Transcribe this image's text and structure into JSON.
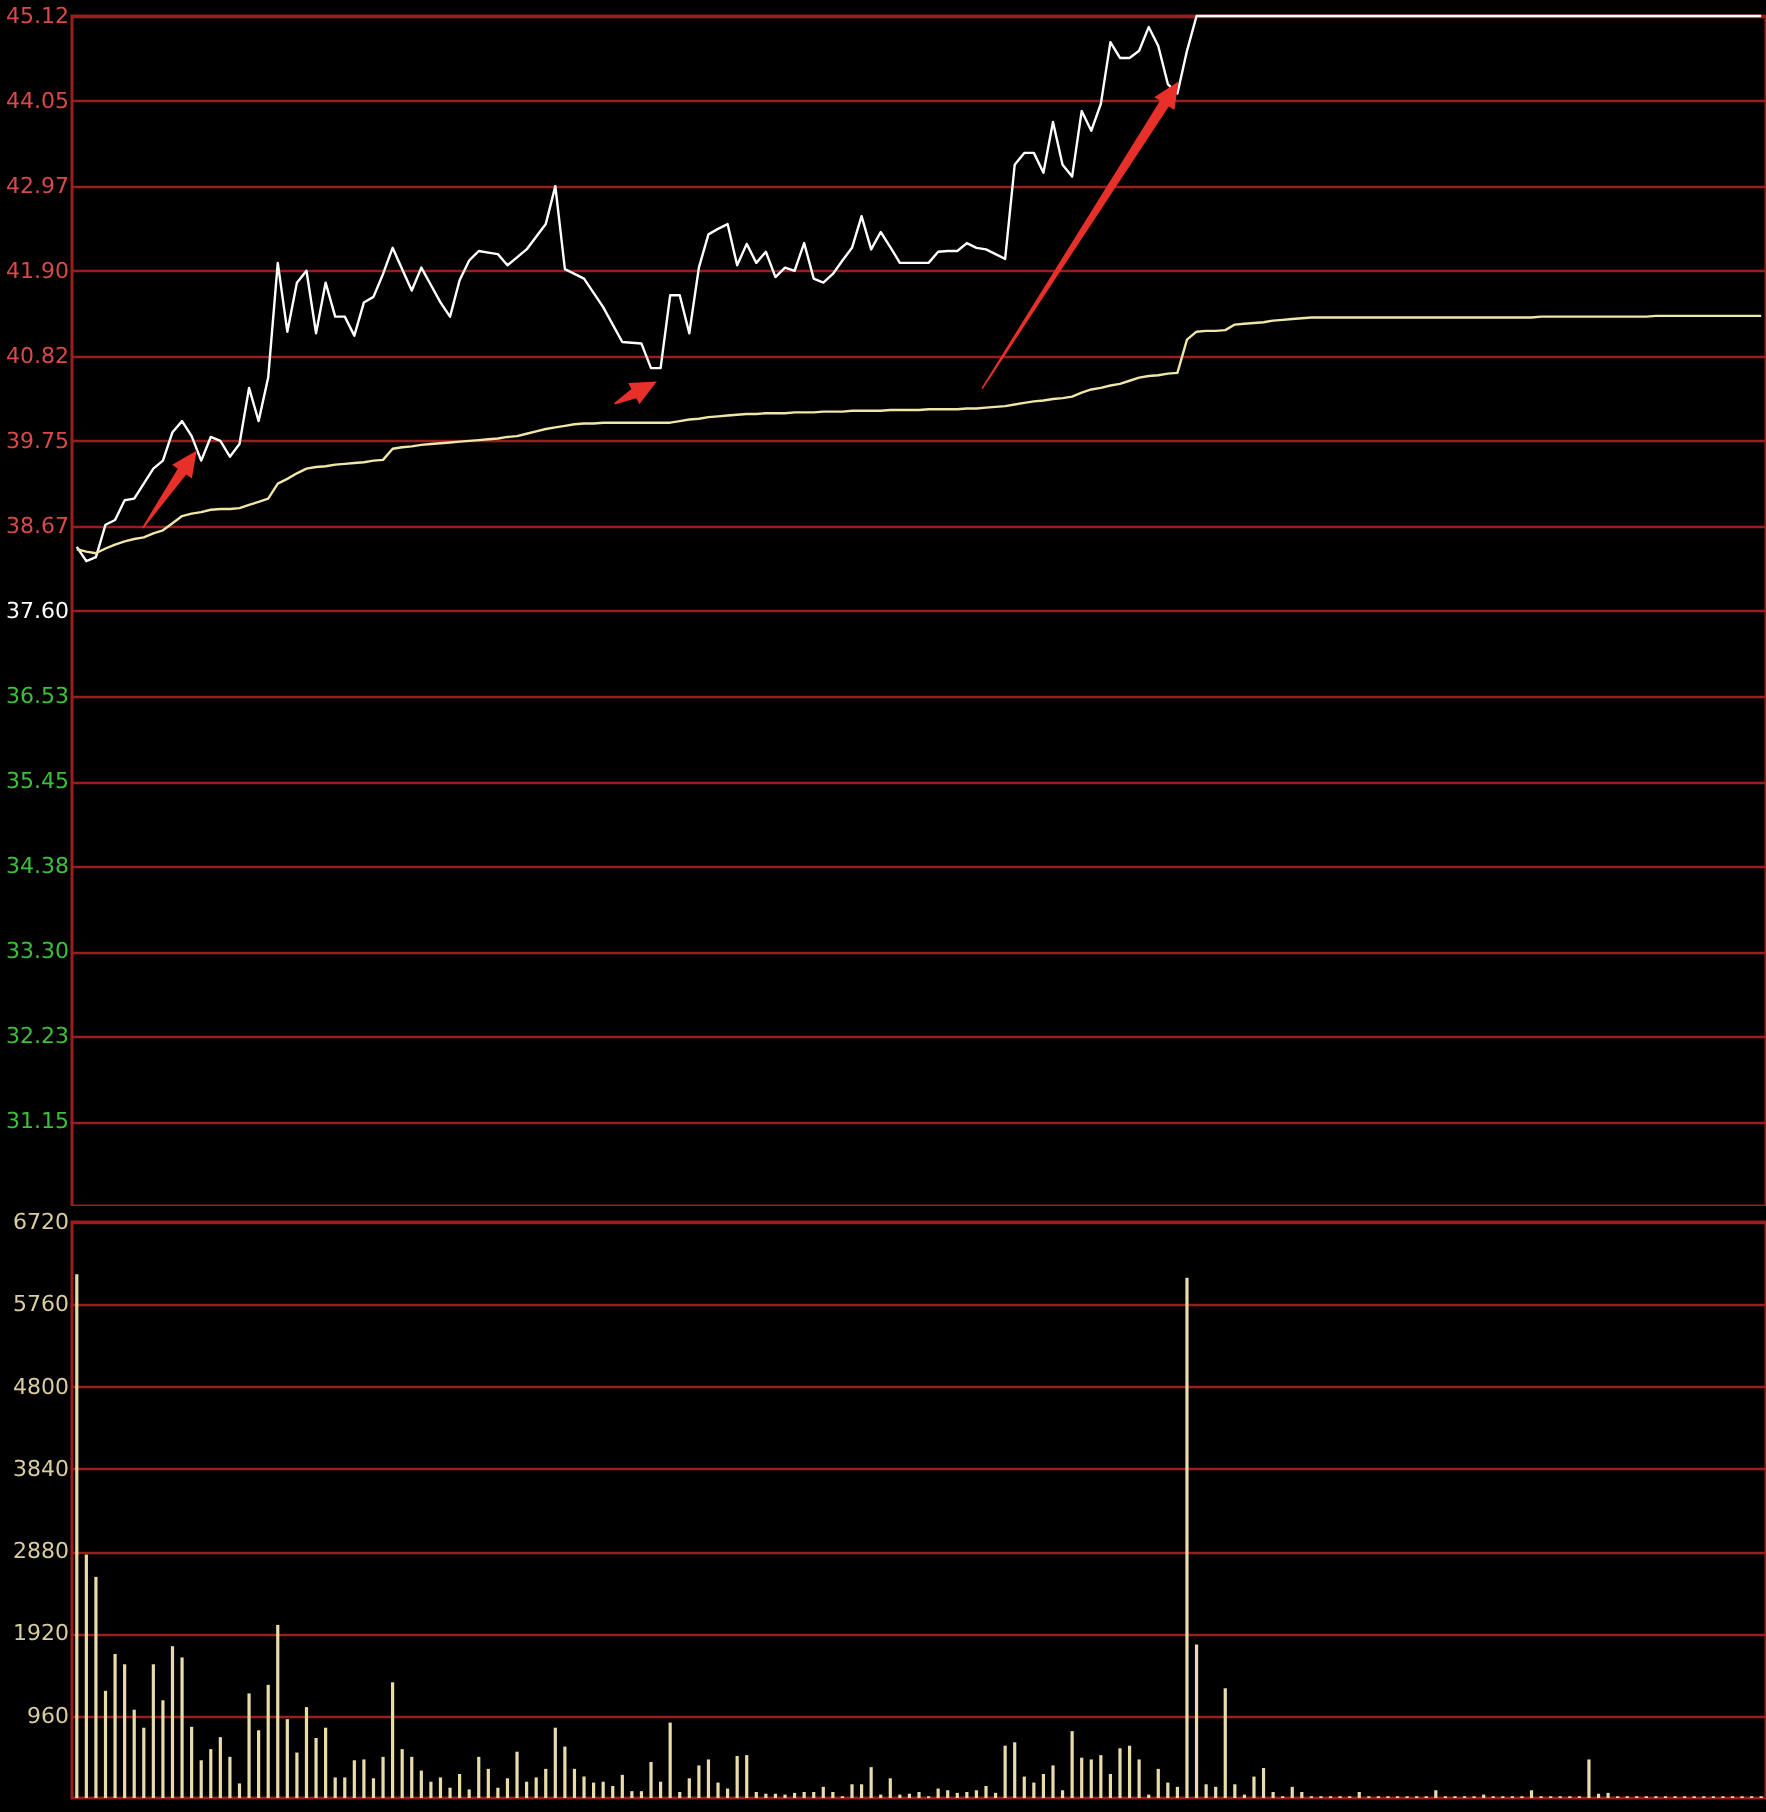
{
  "chart_data": [
    {
      "type": "line",
      "categories": [
        null,
        null,
        null,
        null,
        null,
        null,
        null,
        null,
        null,
        null,
        null,
        null,
        null,
        null,
        null,
        null,
        null,
        null,
        null,
        null,
        null,
        null,
        null,
        null,
        null,
        null,
        null,
        null,
        null,
        null,
        null,
        null,
        null,
        null,
        null,
        null,
        null,
        null,
        null,
        null,
        null,
        null,
        null,
        null,
        null,
        null,
        null,
        null,
        null,
        null,
        null,
        null,
        null,
        null,
        null,
        null,
        null,
        null,
        null,
        null,
        null,
        null,
        null,
        null,
        null,
        null,
        null,
        null,
        null,
        null,
        null,
        null,
        null,
        null,
        null,
        null,
        null,
        null,
        null,
        null,
        null,
        null,
        null,
        null,
        null,
        null,
        null,
        null,
        null,
        null,
        null,
        null,
        null,
        null,
        null,
        null,
        null,
        null,
        null,
        null,
        null,
        null,
        null,
        null,
        null,
        null,
        null,
        null,
        null,
        null,
        null,
        null,
        null,
        null,
        null,
        null,
        null,
        null,
        null,
        null,
        null,
        null,
        null,
        null,
        null,
        null,
        null,
        null,
        null,
        null,
        null,
        null,
        null,
        null,
        null,
        null,
        null,
        null,
        null,
        null,
        null,
        null,
        null,
        null,
        null,
        null,
        null,
        null,
        null,
        null,
        null,
        null,
        null,
        null,
        null,
        null,
        null,
        null,
        null,
        null,
        null,
        null,
        null,
        null,
        null,
        null,
        null,
        null,
        null,
        null,
        null,
        null,
        null,
        null,
        null,
        null,
        null
      ],
      "ylim": [
        30.08,
        45.12
      ],
      "yticks": [
        31.15,
        32.23,
        {
          "value": 33.3,
          "label": "33.30"
        },
        34.38,
        35.45,
        36.53,
        {
          "value": 37.6,
          "label": "37.60"
        },
        38.67,
        39.75,
        40.82,
        {
          "value": 41.9,
          "label": "41.90"
        },
        42.97,
        44.05,
        45.12
      ],
      "grid": "y",
      "tick_labels": "y",
      "series": [
        {
          "color": "#ffffff",
          "values": [
            38.41,
            38.23,
            38.28,
            38.69,
            38.75,
            39.0,
            39.02,
            39.21,
            39.4,
            39.5,
            39.86,
            40.0,
            39.81,
            39.5,
            39.8,
            39.75,
            39.55,
            39.71,
            40.42,
            40.0,
            40.55,
            42.0,
            41.13,
            41.75,
            41.9,
            41.11,
            41.75,
            41.32,
            41.32,
            41.08,
            41.5,
            41.57,
            41.86,
            42.19,
            41.92,
            41.65,
            41.94,
            41.72,
            41.5,
            41.32,
            41.78,
            42.03,
            42.15,
            42.13,
            42.11,
            41.97,
            42.07,
            42.17,
            42.33,
            42.49,
            42.97,
            41.92,
            41.86,
            41.8,
            41.62,
            41.44,
            41.22,
            41.0,
            40.99,
            40.98,
            40.67,
            40.67,
            41.59,
            41.59,
            41.11,
            41.94,
            42.36,
            42.43,
            42.49,
            41.97,
            42.24,
            42.0,
            42.14,
            41.82,
            41.94,
            41.9,
            42.25,
            41.8,
            41.75,
            41.86,
            42.03,
            42.19,
            42.59,
            42.17,
            42.39,
            42.2,
            42.0,
            42.0,
            42.0,
            42.0,
            42.14,
            42.15,
            42.15,
            42.25,
            42.19,
            42.17,
            42.11,
            42.05,
            43.24,
            43.39,
            43.39,
            43.14,
            43.78,
            43.24,
            43.09,
            43.92,
            43.67,
            44.01,
            44.79,
            44.59,
            44.59,
            44.68,
            44.98,
            44.74,
            44.26,
            44.14,
            44.68,
            45.12,
            45.12,
            45.12,
            45.12,
            45.12,
            45.12,
            45.12,
            45.12,
            45.12,
            45.12,
            45.12,
            45.12,
            45.12,
            45.12,
            45.12,
            45.12,
            45.12,
            45.12,
            45.12,
            45.12,
            45.12,
            45.12,
            45.12,
            45.12,
            45.12,
            45.12,
            45.12,
            45.12,
            45.12,
            45.12,
            45.12,
            45.12,
            45.12,
            45.12,
            45.12,
            45.12,
            45.12,
            45.12,
            45.12,
            45.12,
            45.12,
            45.12,
            45.12,
            45.12,
            45.12,
            45.12,
            45.12,
            45.12,
            45.12,
            45.12,
            45.12,
            45.12,
            45.12,
            45.12,
            45.12,
            45.12,
            45.12,
            45.12,
            45.12,
            45.12
          ]
        },
        {
          "color": "#f0e6a8",
          "values": [
            38.38,
            38.35,
            38.33,
            38.39,
            38.44,
            38.48,
            38.51,
            38.53,
            38.58,
            38.62,
            38.71,
            38.8,
            38.83,
            38.85,
            38.88,
            38.89,
            38.89,
            38.9,
            38.94,
            38.98,
            39.02,
            39.21,
            39.27,
            39.34,
            39.4,
            39.42,
            39.43,
            39.45,
            39.46,
            39.47,
            39.48,
            39.5,
            39.51,
            39.65,
            39.67,
            39.68,
            39.7,
            39.71,
            39.72,
            39.73,
            39.74,
            39.75,
            39.76,
            39.77,
            39.78,
            39.8,
            39.81,
            39.84,
            39.87,
            39.9,
            39.92,
            39.94,
            39.96,
            39.97,
            39.97,
            39.98,
            39.98,
            39.98,
            39.98,
            39.98,
            39.98,
            39.98,
            39.98,
            40.0,
            40.02,
            40.03,
            40.05,
            40.06,
            40.07,
            40.08,
            40.09,
            40.09,
            40.1,
            40.1,
            40.1,
            40.11,
            40.11,
            40.11,
            40.12,
            40.12,
            40.12,
            40.13,
            40.13,
            40.13,
            40.13,
            40.14,
            40.14,
            40.14,
            40.14,
            40.15,
            40.15,
            40.15,
            40.15,
            40.16,
            40.16,
            40.17,
            40.18,
            40.19,
            40.21,
            40.23,
            40.25,
            40.26,
            40.28,
            40.29,
            40.31,
            40.36,
            40.4,
            40.42,
            40.45,
            40.47,
            40.51,
            40.55,
            40.57,
            40.58,
            40.6,
            40.61,
            41.03,
            41.13,
            41.14,
            41.14,
            41.15,
            41.22,
            41.23,
            41.24,
            41.25,
            41.27,
            41.28,
            41.29,
            41.3,
            41.31,
            41.31,
            41.31,
            41.31,
            41.31,
            41.31,
            41.31,
            41.31,
            41.31,
            41.31,
            41.31,
            41.31,
            41.31,
            41.31,
            41.31,
            41.31,
            41.31,
            41.31,
            41.31,
            41.31,
            41.31,
            41.31,
            41.31,
            41.31,
            41.32,
            41.32,
            41.32,
            41.32,
            41.32,
            41.32,
            41.32,
            41.32,
            41.32,
            41.32,
            41.32,
            41.32,
            41.33,
            41.33,
            41.33,
            41.33,
            41.33,
            41.33,
            41.33,
            41.33,
            41.33,
            41.33,
            41.33,
            41.33
          ]
        }
      ]
    },
    {
      "type": "bar",
      "categories": [
        null,
        null,
        null,
        null,
        null,
        null,
        null,
        null,
        null,
        null,
        null,
        null,
        null,
        null,
        null,
        null,
        null,
        null,
        null,
        null,
        null,
        null,
        null,
        null,
        null,
        null,
        null,
        null,
        null,
        null,
        null,
        null,
        null,
        null,
        null,
        null,
        null,
        null,
        null,
        null,
        null,
        null,
        null,
        null,
        null,
        null,
        null,
        null,
        null,
        null,
        null,
        null,
        null,
        null,
        null,
        null,
        null,
        null,
        null,
        null,
        null,
        null,
        null,
        null,
        null,
        null,
        null,
        null,
        null,
        null,
        null,
        null,
        null,
        null,
        null,
        null,
        null,
        null,
        null,
        null,
        null,
        null,
        null,
        null,
        null,
        null,
        null,
        null,
        null,
        null,
        null,
        null,
        null,
        null,
        null,
        null,
        null,
        null,
        null,
        null,
        null,
        null,
        null,
        null,
        null,
        null,
        null,
        null,
        null,
        null,
        null,
        null,
        null,
        null,
        null,
        null,
        null,
        null,
        null,
        null,
        null,
        null,
        null,
        null,
        null,
        null,
        null,
        null,
        null,
        null,
        null,
        null,
        null,
        null,
        null,
        null,
        null,
        null,
        null,
        null,
        null,
        null,
        null,
        null,
        null,
        null,
        null,
        null,
        null,
        null,
        null,
        null,
        null,
        null,
        null,
        null,
        null,
        null,
        null,
        null,
        null,
        null,
        null,
        null,
        null,
        null,
        null,
        null,
        null,
        null,
        null,
        null,
        null,
        null,
        null,
        null,
        null
      ],
      "ylim": [
        0,
        6720
      ],
      "yticks": [
        960,
        1920,
        2880,
        3840,
        4800,
        5760,
        6720
      ],
      "grid": "y",
      "tick_labels": "y",
      "series": [
        {
          "color": "#e8dca8",
          "values": [
            6110,
            2840,
            2580,
            1250,
            1680,
            1560,
            1030,
            820,
            1560,
            1140,
            1770,
            1640,
            830,
            440,
            570,
            710,
            480,
            170,
            1220,
            790,
            1320,
            2020,
            920,
            530,
            1060,
            700,
            820,
            240,
            240,
            440,
            450,
            230,
            480,
            1350,
            570,
            480,
            320,
            190,
            240,
            120,
            280,
            100,
            480,
            340,
            120,
            230,
            540,
            190,
            240,
            340,
            820,
            600,
            340,
            250,
            180,
            190,
            140,
            270,
            80,
            80,
            420,
            190,
            880,
            70,
            230,
            380,
            450,
            180,
            110,
            490,
            500,
            70,
            50,
            50,
            40,
            60,
            70,
            70,
            130,
            70,
            20,
            160,
            160,
            360,
            40,
            230,
            40,
            50,
            70,
            20,
            110,
            90,
            60,
            70,
            90,
            140,
            60,
            610,
            650,
            250,
            180,
            280,
            380,
            90,
            780,
            470,
            450,
            500,
            280,
            580,
            610,
            450,
            40,
            340,
            180,
            130,
            6070,
            1790,
            160,
            130,
            1280,
            160,
            40,
            250,
            350,
            70,
            20,
            130,
            70,
            20,
            20,
            20,
            20,
            20,
            70,
            20,
            20,
            20,
            20,
            20,
            20,
            20,
            90,
            20,
            20,
            20,
            20,
            40,
            20,
            20,
            20,
            20,
            90,
            20,
            20,
            20,
            20,
            20,
            450,
            50,
            60,
            20,
            20,
            20,
            20,
            20,
            20,
            20,
            20,
            20,
            20,
            20,
            20,
            20,
            20,
            20,
            20
          ]
        }
      ]
    }
  ]
}
